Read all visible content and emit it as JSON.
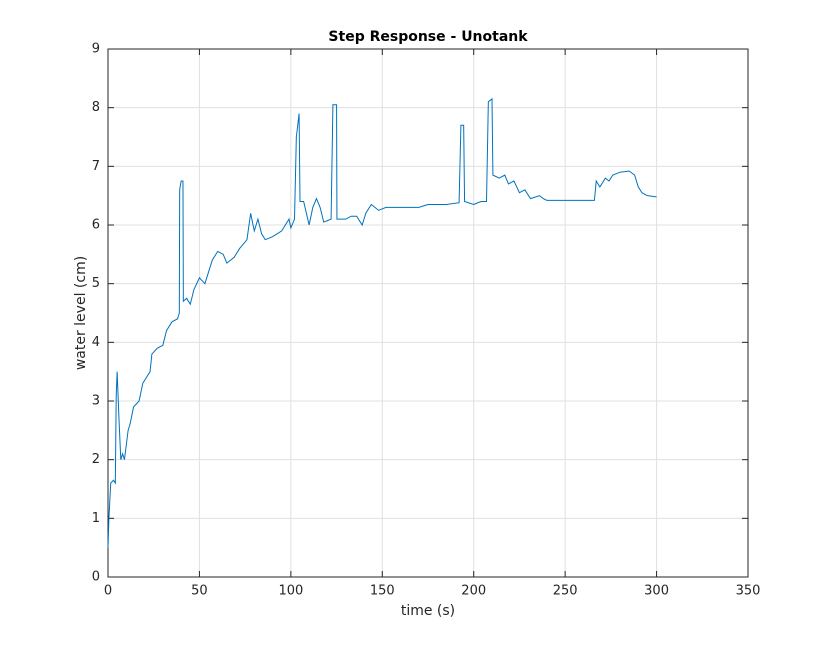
{
  "chart_data": {
    "type": "line",
    "title": "Step Response - Unotank",
    "xlabel": "time (s)",
    "ylabel": "water level (cm)",
    "x": [
      0,
      0.5,
      1.5,
      3,
      4,
      4.5,
      5,
      6,
      7,
      8,
      9,
      11,
      12,
      14,
      17,
      19,
      21,
      23,
      24,
      27,
      30,
      32,
      35,
      38,
      39,
      39.2,
      40,
      41,
      41.2,
      43,
      45,
      47,
      50,
      53,
      55,
      57,
      60,
      63,
      65,
      69,
      72,
      76,
      78,
      80,
      82,
      84,
      86,
      90,
      95,
      99,
      100,
      102,
      103,
      104.5,
      105,
      107,
      110,
      112,
      114,
      116,
      118,
      122,
      123,
      125,
      125.2,
      130,
      133,
      136,
      139,
      141,
      144,
      148,
      152,
      170,
      175,
      185,
      192,
      193,
      194.5,
      195,
      200,
      204,
      207,
      208,
      210,
      210.5,
      214,
      217,
      219,
      222,
      225,
      228,
      231,
      236,
      238,
      240,
      266,
      267,
      269,
      272,
      274,
      276,
      280,
      285,
      288,
      290,
      292,
      295,
      300
    ],
    "series": [
      {
        "name": "water level",
        "color": "#0072bd",
        "values": [
          0.5,
          1.0,
          1.6,
          1.65,
          1.6,
          3.1,
          3.5,
          2.7,
          2.0,
          2.1,
          2.0,
          2.5,
          2.6,
          2.9,
          3.0,
          3.3,
          3.4,
          3.5,
          3.8,
          3.9,
          3.95,
          4.2,
          4.35,
          4.4,
          4.5,
          6.6,
          6.75,
          6.75,
          4.7,
          4.75,
          4.65,
          4.9,
          5.1,
          5.0,
          5.2,
          5.4,
          5.55,
          5.5,
          5.35,
          5.45,
          5.6,
          5.75,
          6.2,
          5.9,
          6.1,
          5.85,
          5.75,
          5.8,
          5.9,
          6.1,
          5.95,
          6.1,
          7.5,
          7.9,
          6.4,
          6.4,
          6.0,
          6.3,
          6.45,
          6.3,
          6.05,
          6.1,
          8.05,
          8.05,
          6.1,
          6.1,
          6.15,
          6.15,
          6.0,
          6.2,
          6.35,
          6.25,
          6.3,
          6.3,
          6.35,
          6.35,
          6.38,
          7.7,
          7.7,
          6.4,
          6.35,
          6.4,
          6.4,
          8.1,
          8.15,
          6.85,
          6.8,
          6.85,
          6.7,
          6.75,
          6.55,
          6.6,
          6.45,
          6.5,
          6.45,
          6.42,
          6.42,
          6.75,
          6.65,
          6.8,
          6.75,
          6.85,
          6.9,
          6.92,
          6.85,
          6.65,
          6.55,
          6.5,
          6.48
        ]
      }
    ],
    "xlim": [
      0,
      350
    ],
    "xticks": [
      0,
      50,
      100,
      150,
      200,
      250,
      300,
      350
    ],
    "ylim": [
      0,
      9
    ],
    "yticks": [
      0,
      1,
      2,
      3,
      4,
      5,
      6,
      7,
      8,
      9
    ],
    "grid": true
  }
}
